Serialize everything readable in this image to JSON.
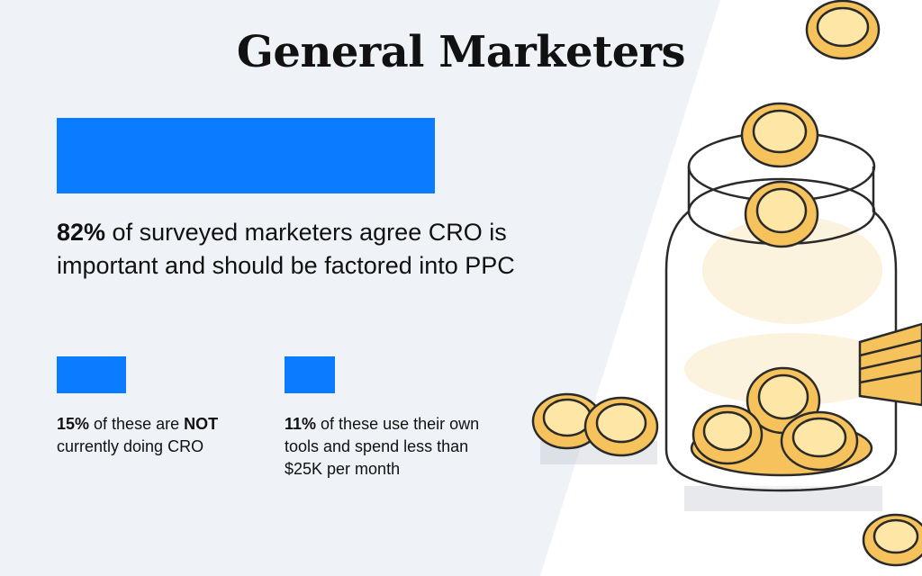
{
  "header": {
    "title": "General Marketers"
  },
  "stats": [
    {
      "value": 82,
      "parts": [
        {
          "text": "82%",
          "bold": true
        },
        {
          "text": " of surveyed marketers agree CRO is important and should be factored into PPC",
          "bold": false
        }
      ]
    },
    {
      "value": 15,
      "parts": [
        {
          "text": "15%",
          "bold": true
        },
        {
          "text": " of these are ",
          "bold": false
        },
        {
          "text": "NOT",
          "bold": true
        },
        {
          "text": " currently doing CRO",
          "bold": false
        }
      ]
    },
    {
      "value": 11,
      "parts": [
        {
          "text": "11%",
          "bold": true
        },
        {
          "text": " of these use their own tools and spend less than $25K per month",
          "bold": false
        }
      ]
    }
  ]
}
